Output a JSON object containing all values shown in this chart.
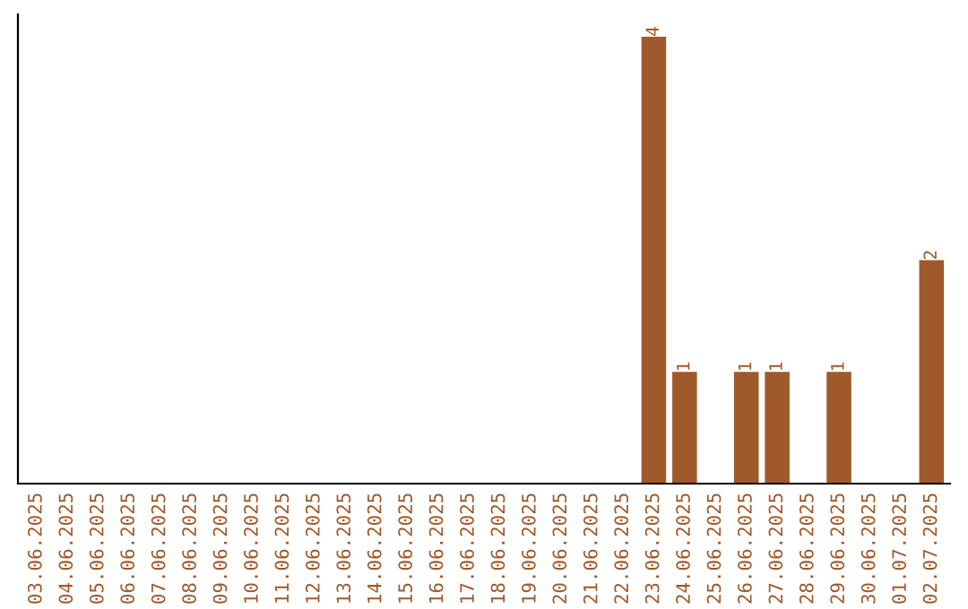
{
  "chart_data": {
    "type": "bar",
    "categories": [
      "03.06.2025",
      "04.06.2025",
      "05.06.2025",
      "06.06.2025",
      "07.06.2025",
      "08.06.2025",
      "09.06.2025",
      "10.06.2025",
      "11.06.2025",
      "12.06.2025",
      "13.06.2025",
      "14.06.2025",
      "15.06.2025",
      "16.06.2025",
      "17.06.2025",
      "18.06.2025",
      "19.06.2025",
      "20.06.2025",
      "21.06.2025",
      "22.06.2025",
      "23.06.2025",
      "24.06.2025",
      "25.06.2025",
      "26.06.2025",
      "27.06.2025",
      "28.06.2025",
      "29.06.2025",
      "30.06.2025",
      "01.07.2025",
      "02.07.2025"
    ],
    "values": [
      null,
      null,
      null,
      null,
      null,
      null,
      null,
      null,
      null,
      null,
      null,
      null,
      null,
      null,
      null,
      null,
      null,
      null,
      null,
      null,
      4,
      1,
      null,
      1,
      1,
      null,
      1,
      null,
      null,
      2
    ],
    "value_labels": [
      null,
      null,
      null,
      null,
      null,
      null,
      null,
      null,
      null,
      null,
      null,
      null,
      null,
      null,
      null,
      null,
      null,
      null,
      null,
      null,
      "4",
      "1",
      null,
      "1",
      "1",
      null,
      "1",
      null,
      null,
      "2"
    ],
    "color": "#a0592a",
    "tick_labels": "x",
    "grid": false,
    "legend": false
  }
}
